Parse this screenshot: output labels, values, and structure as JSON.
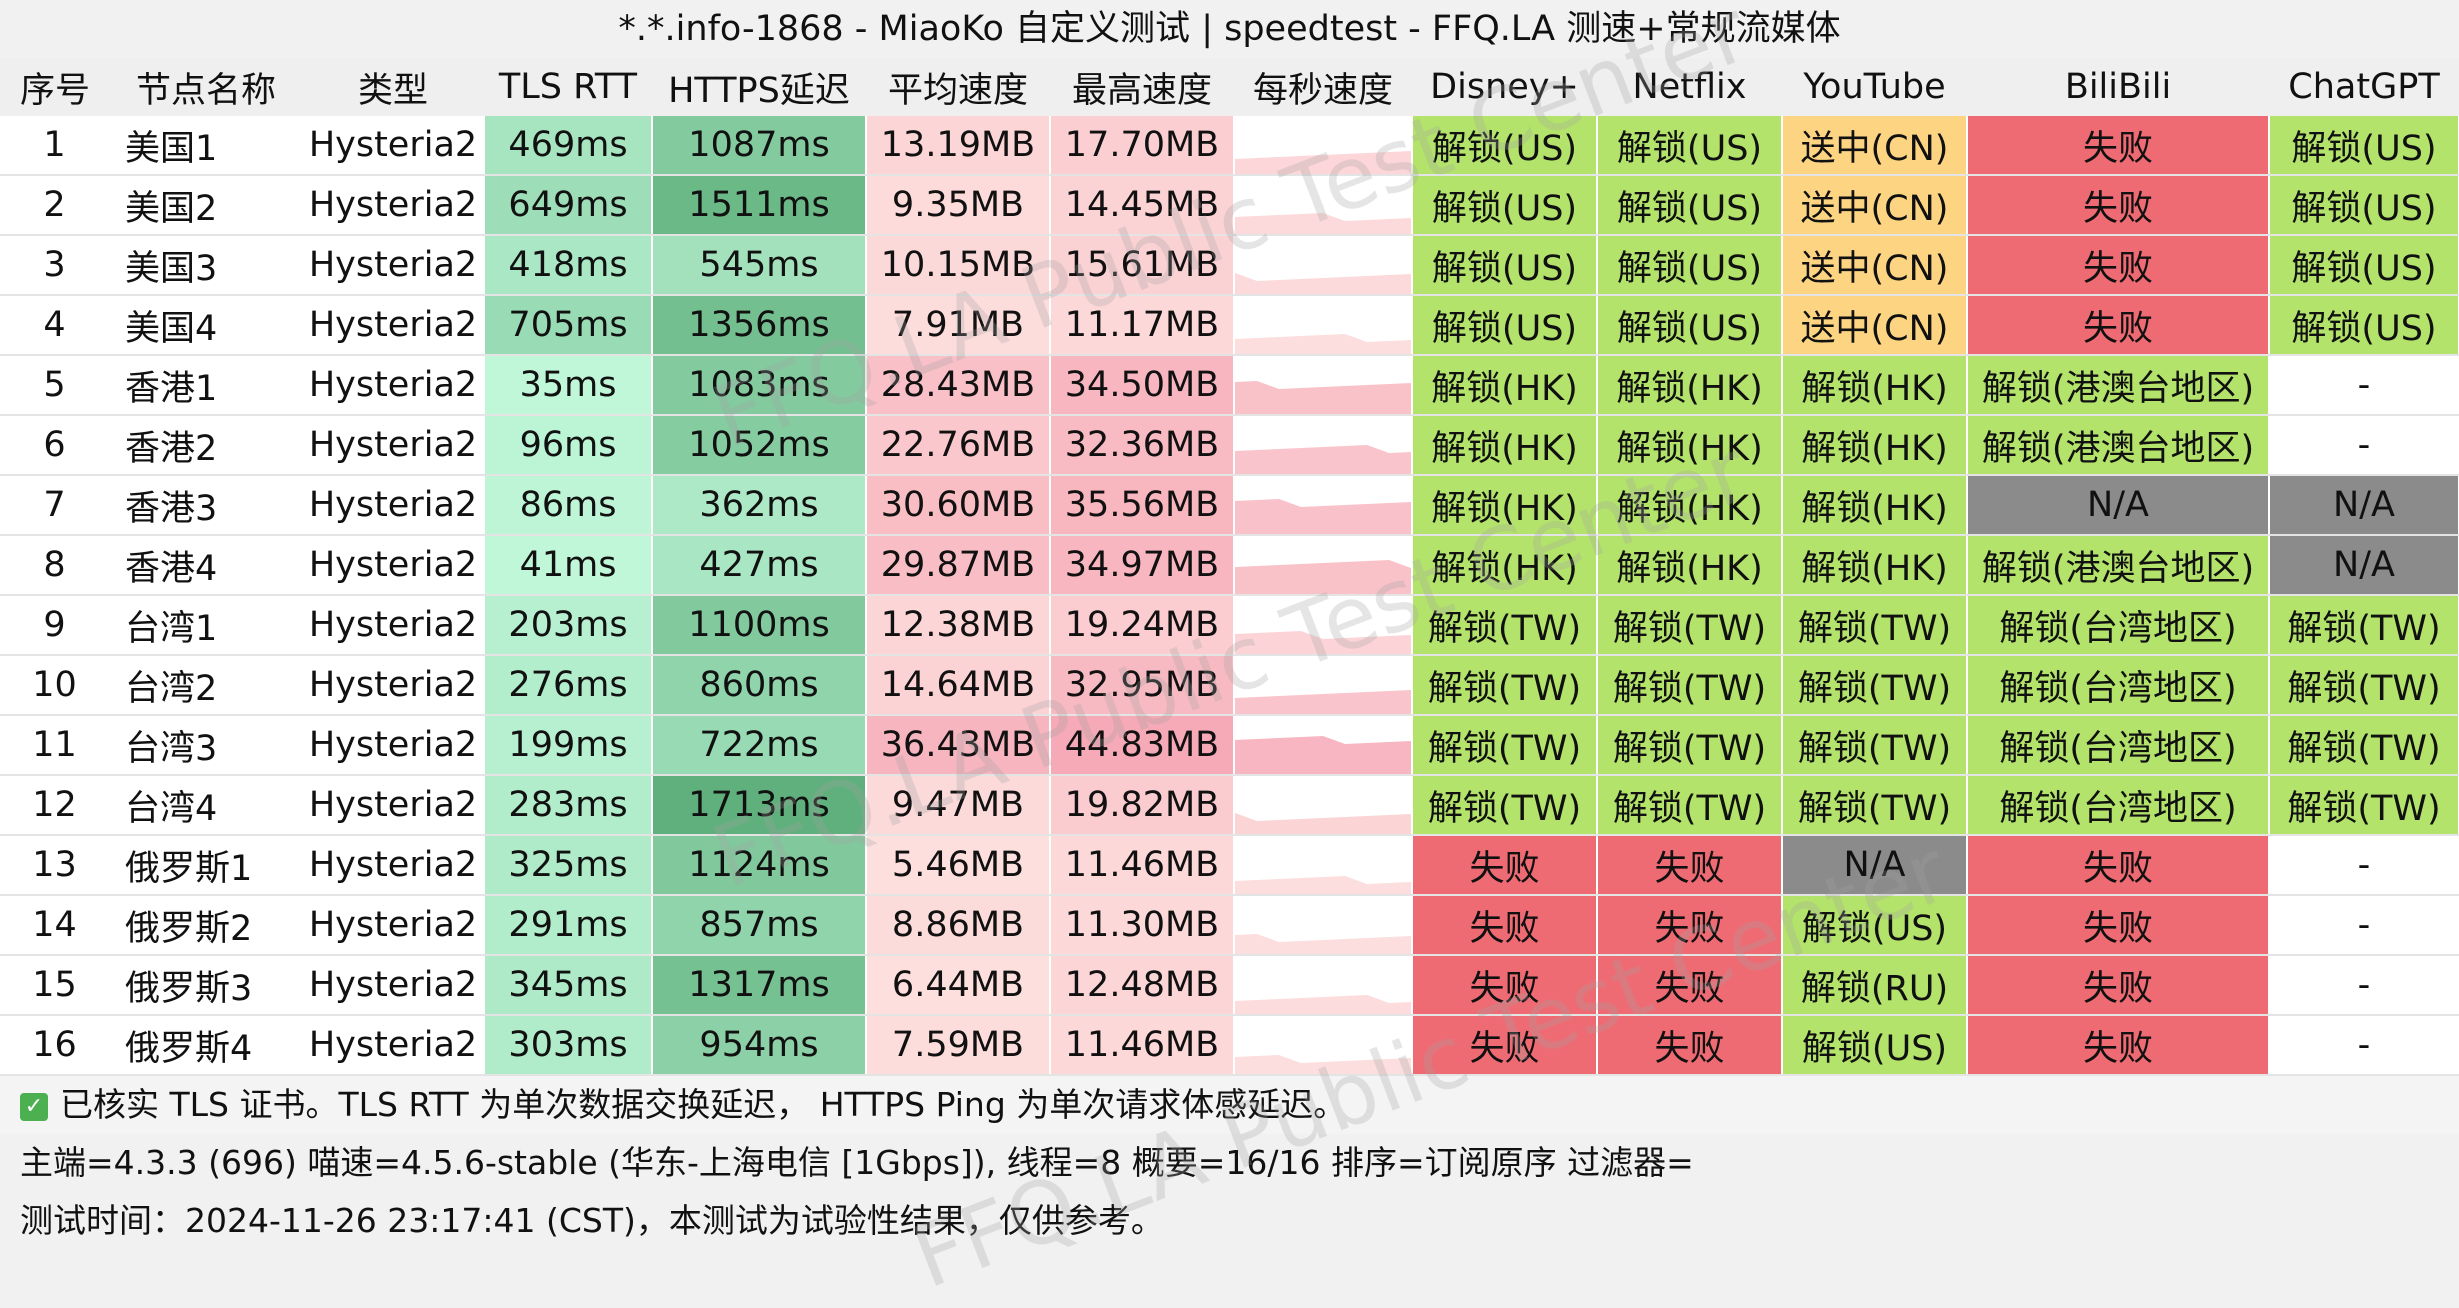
{
  "title": "*.*.info-1868 - MiaoKo 自定义测试 | speedtest - FFQ.LA 测速+常规流媒体",
  "columns": [
    "序号",
    "节点名称",
    "类型",
    "TLS RTT",
    "HTTPS延迟",
    "平均速度",
    "最高速度",
    "每秒速度",
    "Disney+",
    "Netflix",
    "YouTube",
    "BiliBili",
    "ChatGPT"
  ],
  "rows": [
    {
      "idx": "1",
      "name": "美国1",
      "type": "Hysteria2",
      "tls": "469ms",
      "https": "1087ms",
      "avg": "13.19MB",
      "max": "17.70MB",
      "disney": "解锁(US)",
      "netflix": "解锁(US)",
      "youtube": "送中(CN)",
      "bili": "失败",
      "gpt": "解锁(US)"
    },
    {
      "idx": "2",
      "name": "美国2",
      "type": "Hysteria2",
      "tls": "649ms",
      "https": "1511ms",
      "avg": "9.35MB",
      "max": "14.45MB",
      "disney": "解锁(US)",
      "netflix": "解锁(US)",
      "youtube": "送中(CN)",
      "bili": "失败",
      "gpt": "解锁(US)"
    },
    {
      "idx": "3",
      "name": "美国3",
      "type": "Hysteria2",
      "tls": "418ms",
      "https": "545ms",
      "avg": "10.15MB",
      "max": "15.61MB",
      "disney": "解锁(US)",
      "netflix": "解锁(US)",
      "youtube": "送中(CN)",
      "bili": "失败",
      "gpt": "解锁(US)"
    },
    {
      "idx": "4",
      "name": "美国4",
      "type": "Hysteria2",
      "tls": "705ms",
      "https": "1356ms",
      "avg": "7.91MB",
      "max": "11.17MB",
      "disney": "解锁(US)",
      "netflix": "解锁(US)",
      "youtube": "送中(CN)",
      "bili": "失败",
      "gpt": "解锁(US)"
    },
    {
      "idx": "5",
      "name": "香港1",
      "type": "Hysteria2",
      "tls": "35ms",
      "https": "1083ms",
      "avg": "28.43MB",
      "max": "34.50MB",
      "disney": "解锁(HK)",
      "netflix": "解锁(HK)",
      "youtube": "解锁(HK)",
      "bili": "解锁(港澳台地区)",
      "gpt": "-"
    },
    {
      "idx": "6",
      "name": "香港2",
      "type": "Hysteria2",
      "tls": "96ms",
      "https": "1052ms",
      "avg": "22.76MB",
      "max": "32.36MB",
      "disney": "解锁(HK)",
      "netflix": "解锁(HK)",
      "youtube": "解锁(HK)",
      "bili": "解锁(港澳台地区)",
      "gpt": "-"
    },
    {
      "idx": "7",
      "name": "香港3",
      "type": "Hysteria2",
      "tls": "86ms",
      "https": "362ms",
      "avg": "30.60MB",
      "max": "35.56MB",
      "disney": "解锁(HK)",
      "netflix": "解锁(HK)",
      "youtube": "解锁(HK)",
      "bili": "N/A",
      "gpt": "N/A"
    },
    {
      "idx": "8",
      "name": "香港4",
      "type": "Hysteria2",
      "tls": "41ms",
      "https": "427ms",
      "avg": "29.87MB",
      "max": "34.97MB",
      "disney": "解锁(HK)",
      "netflix": "解锁(HK)",
      "youtube": "解锁(HK)",
      "bili": "解锁(港澳台地区)",
      "gpt": "N/A"
    },
    {
      "idx": "9",
      "name": "台湾1",
      "type": "Hysteria2",
      "tls": "203ms",
      "https": "1100ms",
      "avg": "12.38MB",
      "max": "19.24MB",
      "disney": "解锁(TW)",
      "netflix": "解锁(TW)",
      "youtube": "解锁(TW)",
      "bili": "解锁(台湾地区)",
      "gpt": "解锁(TW)"
    },
    {
      "idx": "10",
      "name": "台湾2",
      "type": "Hysteria2",
      "tls": "276ms",
      "https": "860ms",
      "avg": "14.64MB",
      "max": "32.95MB",
      "disney": "解锁(TW)",
      "netflix": "解锁(TW)",
      "youtube": "解锁(TW)",
      "bili": "解锁(台湾地区)",
      "gpt": "解锁(TW)"
    },
    {
      "idx": "11",
      "name": "台湾3",
      "type": "Hysteria2",
      "tls": "199ms",
      "https": "722ms",
      "avg": "36.43MB",
      "max": "44.83MB",
      "disney": "解锁(TW)",
      "netflix": "解锁(TW)",
      "youtube": "解锁(TW)",
      "bili": "解锁(台湾地区)",
      "gpt": "解锁(TW)"
    },
    {
      "idx": "12",
      "name": "台湾4",
      "type": "Hysteria2",
      "tls": "283ms",
      "https": "1713ms",
      "avg": "9.47MB",
      "max": "19.82MB",
      "disney": "解锁(TW)",
      "netflix": "解锁(TW)",
      "youtube": "解锁(TW)",
      "bili": "解锁(台湾地区)",
      "gpt": "解锁(TW)"
    },
    {
      "idx": "13",
      "name": "俄罗斯1",
      "type": "Hysteria2",
      "tls": "325ms",
      "https": "1124ms",
      "avg": "5.46MB",
      "max": "11.46MB",
      "disney": "失败",
      "netflix": "失败",
      "youtube": "N/A",
      "bili": "失败",
      "gpt": "-"
    },
    {
      "idx": "14",
      "name": "俄罗斯2",
      "type": "Hysteria2",
      "tls": "291ms",
      "https": "857ms",
      "avg": "8.86MB",
      "max": "11.30MB",
      "disney": "失败",
      "netflix": "失败",
      "youtube": "解锁(US)",
      "bili": "失败",
      "gpt": "-"
    },
    {
      "idx": "15",
      "name": "俄罗斯3",
      "type": "Hysteria2",
      "tls": "345ms",
      "https": "1317ms",
      "avg": "6.44MB",
      "max": "12.48MB",
      "disney": "失败",
      "netflix": "失败",
      "youtube": "解锁(RU)",
      "bili": "失败",
      "gpt": "-"
    },
    {
      "idx": "16",
      "name": "俄罗斯4",
      "type": "Hysteria2",
      "tls": "303ms",
      "https": "954ms",
      "avg": "7.59MB",
      "max": "11.46MB",
      "disney": "失败",
      "netflix": "失败",
      "youtube": "解锁(US)",
      "bili": "失败",
      "gpt": "-"
    }
  ],
  "footer": {
    "line1": "已核实 TLS 证书。TLS RTT 为单次数据交换延迟， HTTPS Ping 为单次请求体感延迟。",
    "line2": "主端=4.3.3 (696) 喵速=4.5.6-stable (华东-上海电信 [1Gbps]), 线程=8 概要=16/16 排序=订阅原序 过滤器=",
    "line3": "测试时间：2024-11-26 23:17:41 (CST)，本测试为试验性结果，仅供参考。"
  },
  "watermark": "FFQ.LA Public Test Center",
  "colors": {
    "unlock": "#b3e36b",
    "fail": "#ef6b73",
    "na": "#8b8b8b",
    "sent_cn": "#fdd582",
    "speed_low": "#fde0de",
    "speed_high": "#f6a9b6",
    "latency_low": "#c0f7d9",
    "latency_high": "#5fb07c"
  },
  "checkbox_icon": "check-icon"
}
